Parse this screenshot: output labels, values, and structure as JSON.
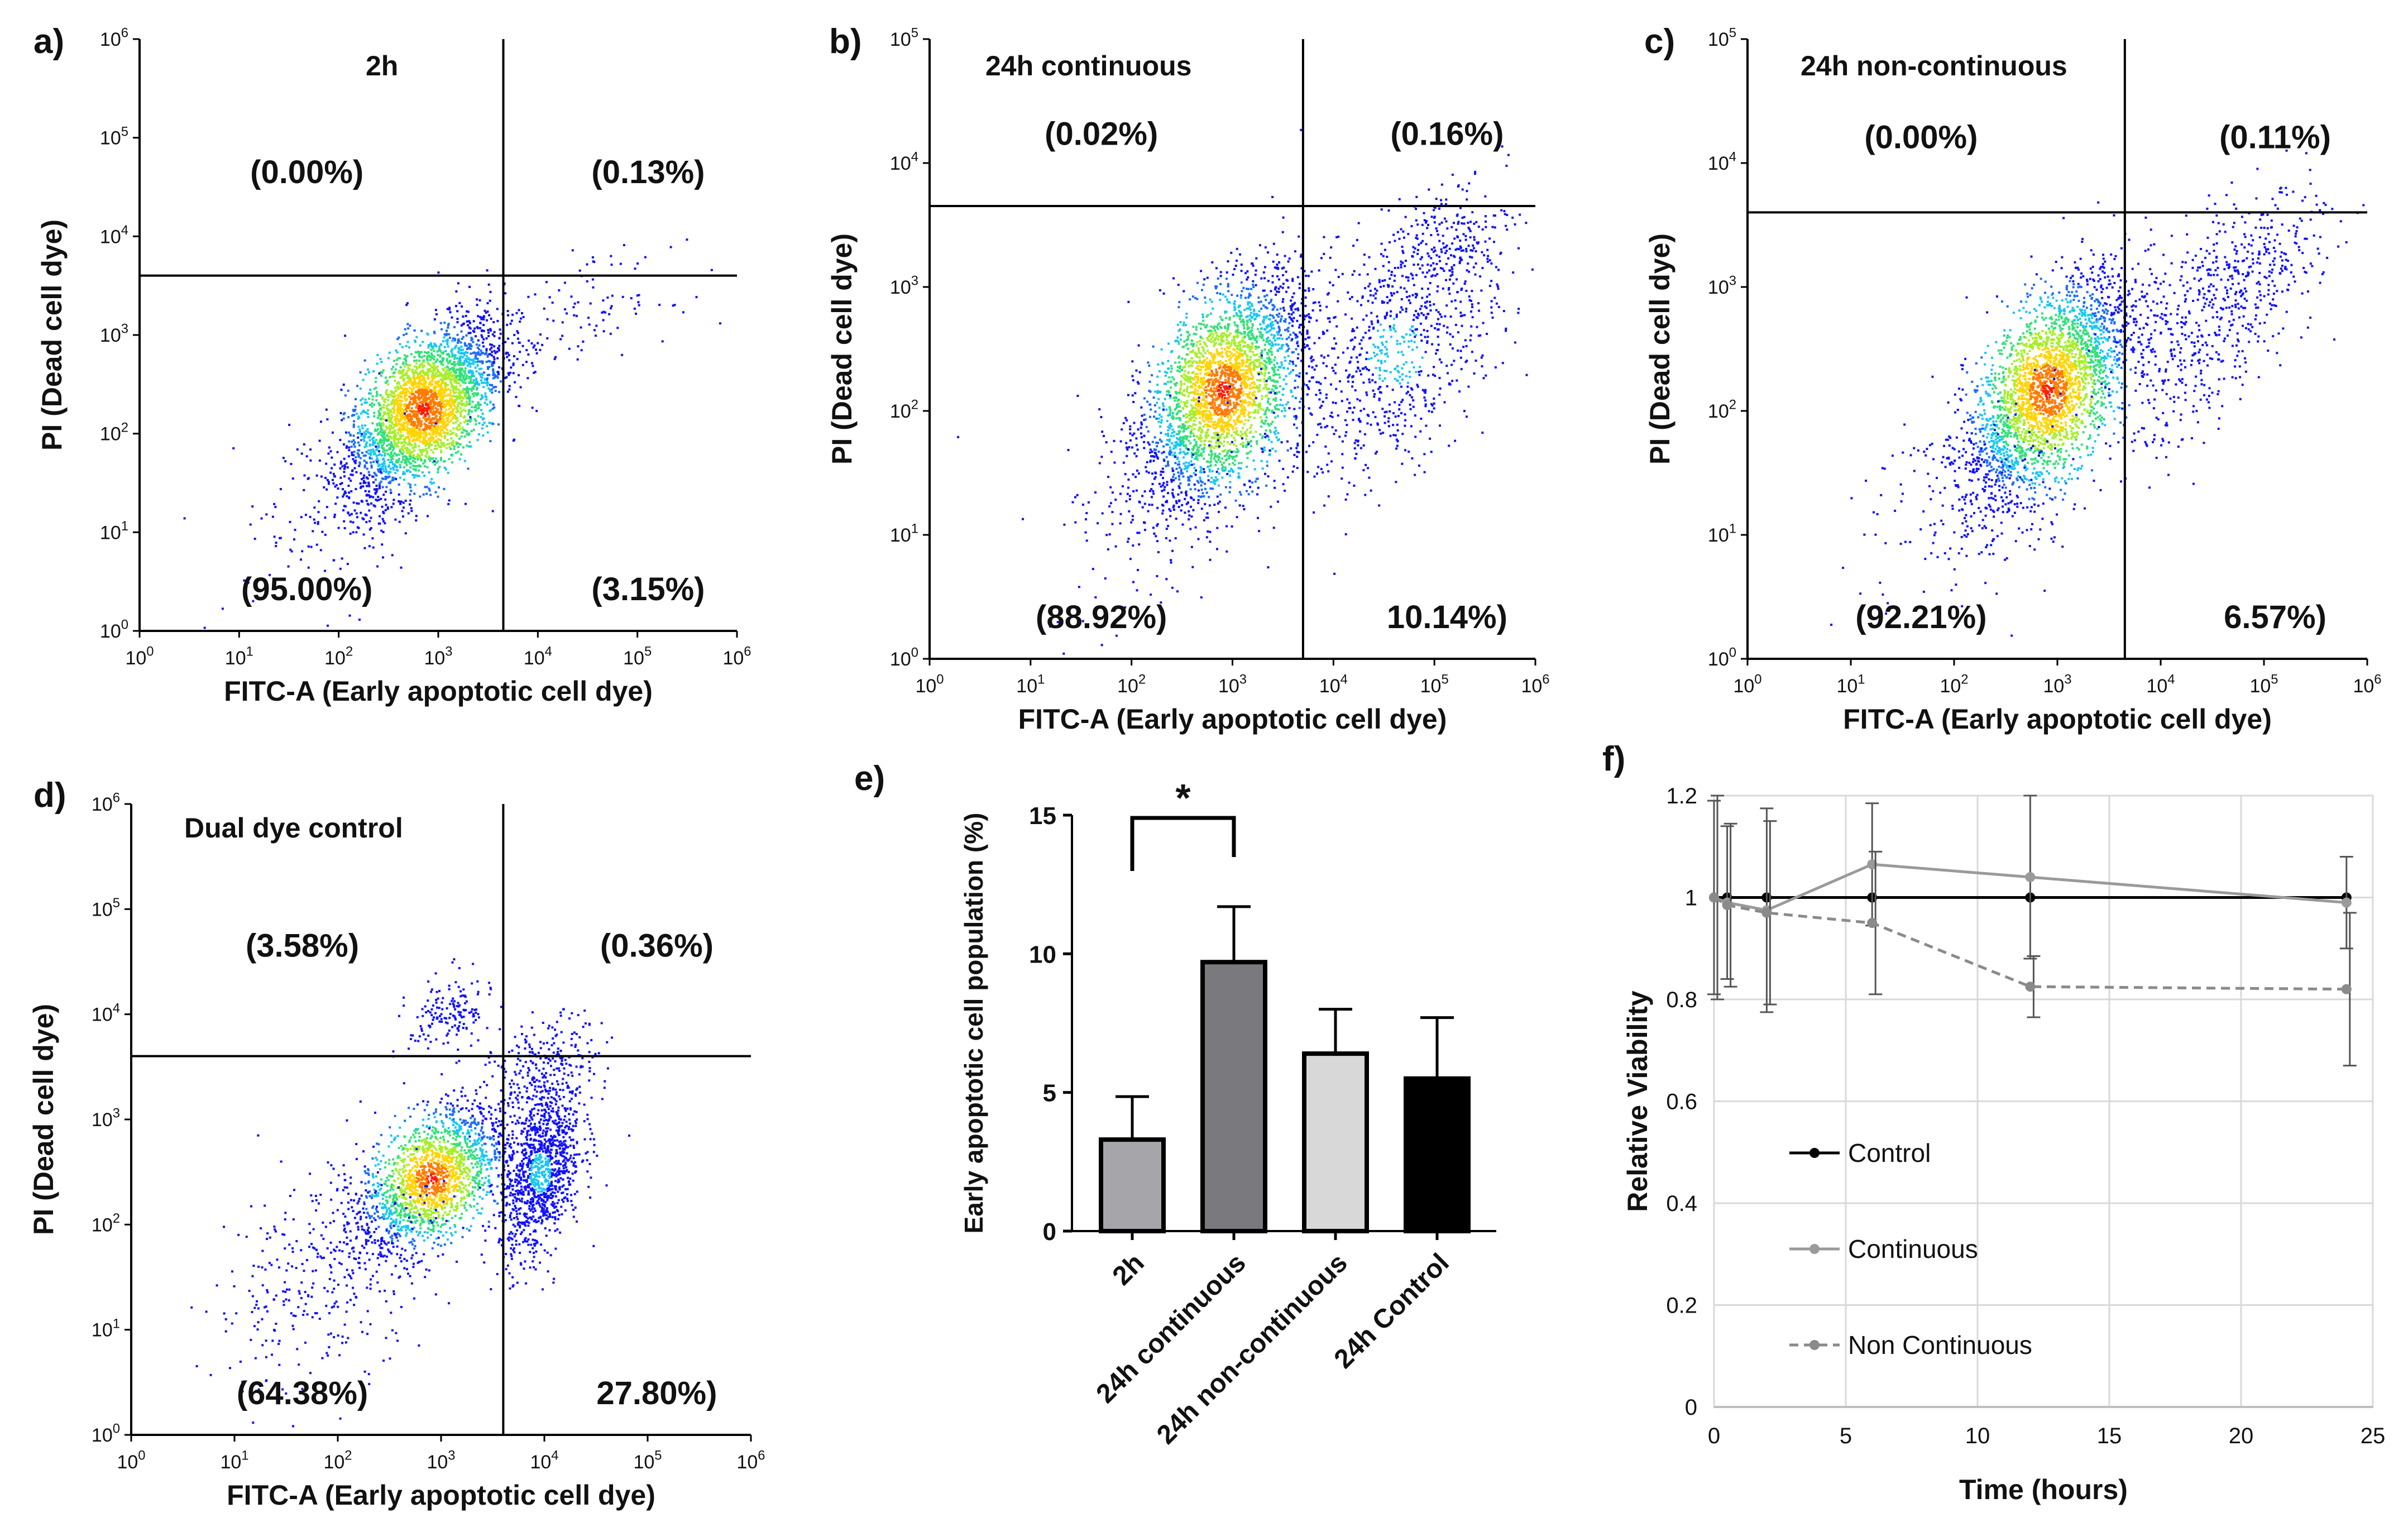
{
  "panel_labels": [
    "a)",
    "b)",
    "c)",
    "d)",
    "e)",
    "f)"
  ],
  "chart_data": [
    {
      "type": "scatter",
      "panel": "a)",
      "title": "2h",
      "xlabel": "FITC-A (Early apoptotic cell dye)",
      "ylabel": "PI (Dead cell dye)",
      "xlim": [
        1,
        1000000
      ],
      "ylim": [
        1,
        1000000
      ],
      "scale": "log",
      "x_ticks": [
        {
          "b": "10",
          "e": "0"
        },
        {
          "b": "10",
          "e": "1"
        },
        {
          "b": "10",
          "e": "2"
        },
        {
          "b": "10",
          "e": "3"
        },
        {
          "b": "10",
          "e": "4"
        },
        {
          "b": "10",
          "e": "5"
        },
        {
          "b": "10",
          "e": "6"
        }
      ],
      "y_ticks": [
        {
          "b": "10",
          "e": "0"
        },
        {
          "b": "10",
          "e": "1"
        },
        {
          "b": "10",
          "e": "2"
        },
        {
          "b": "10",
          "e": "3"
        },
        {
          "b": "10",
          "e": "4"
        },
        {
          "b": "10",
          "e": "5"
        },
        {
          "b": "10",
          "e": "6"
        }
      ],
      "gate": {
        "x": 4500,
        "y": 4000
      },
      "quadrants": {
        "ul": "(0.00%)",
        "ur": "(0.13%)",
        "ll": "(95.00%)",
        "lr": "(3.15%)"
      },
      "clusters": [
        {
          "cx": 700,
          "cy": 180,
          "sx": 0.4,
          "sy": 0.45,
          "rho": 0.6,
          "n": 3000
        },
        {
          "cx": 35000,
          "cy": 2000,
          "sx": 0.4,
          "sy": 0.25,
          "rho": 0.3,
          "n": 90
        },
        {
          "cx": 80,
          "cy": 15,
          "sx": 0.6,
          "sy": 0.5,
          "rho": 0.3,
          "n": 110
        }
      ]
    },
    {
      "type": "scatter",
      "panel": "b)",
      "title": "24h continuous",
      "xlabel": "FITC-A (Early apoptotic cell dye)",
      "ylabel": "PI (Dead cell dye)",
      "xlim": [
        1,
        1000000
      ],
      "ylim": [
        1,
        100000
      ],
      "scale": "log",
      "x_ticks": [
        {
          "b": "10",
          "e": "0"
        },
        {
          "b": "10",
          "e": "1"
        },
        {
          "b": "10",
          "e": "2"
        },
        {
          "b": "10",
          "e": "3"
        },
        {
          "b": "10",
          "e": "4"
        },
        {
          "b": "10",
          "e": "5"
        },
        {
          "b": "10",
          "e": "6"
        }
      ],
      "y_ticks": [
        {
          "b": "10",
          "e": "0"
        },
        {
          "b": "10",
          "e": "1"
        },
        {
          "b": "10",
          "e": "2"
        },
        {
          "b": "10",
          "e": "3"
        },
        {
          "b": "10",
          "e": "4"
        },
        {
          "b": "10",
          "e": "5"
        }
      ],
      "gate": {
        "x": 5000,
        "y": 4500
      },
      "quadrants": {
        "ul": "(0.02%)",
        "ur": "(0.16%)",
        "ll": "(88.92%)",
        "lr": "10.14%)"
      },
      "clusters": [
        {
          "cx": 800,
          "cy": 150,
          "sx": 0.4,
          "sy": 0.45,
          "rho": 0.5,
          "n": 2800
        },
        {
          "cx": 40000,
          "cy": 300,
          "sx": 0.55,
          "sy": 0.55,
          "rho": 0.5,
          "n": 800
        },
        {
          "cx": 100000,
          "cy": 2000,
          "sx": 0.4,
          "sy": 0.3,
          "rho": 0.5,
          "n": 200
        },
        {
          "cx": 200,
          "cy": 20,
          "sx": 0.6,
          "sy": 0.5,
          "rho": 0.3,
          "n": 160
        }
      ]
    },
    {
      "type": "scatter",
      "panel": "c)",
      "title": "24h non-continuous",
      "xlabel": "FITC-A (Early apoptotic cell dye)",
      "ylabel": "PI (Dead cell dye)",
      "xlim": [
        1,
        1000000
      ],
      "ylim": [
        1,
        100000
      ],
      "scale": "log",
      "x_ticks": [
        {
          "b": "10",
          "e": "0"
        },
        {
          "b": "10",
          "e": "1"
        },
        {
          "b": "10",
          "e": "2"
        },
        {
          "b": "10",
          "e": "3"
        },
        {
          "b": "10",
          "e": "4"
        },
        {
          "b": "10",
          "e": "5"
        },
        {
          "b": "10",
          "e": "6"
        }
      ],
      "y_ticks": [
        {
          "b": "10",
          "e": "0"
        },
        {
          "b": "10",
          "e": "1"
        },
        {
          "b": "10",
          "e": "2"
        },
        {
          "b": "10",
          "e": "3"
        },
        {
          "b": "10",
          "e": "4"
        },
        {
          "b": "10",
          "e": "5"
        }
      ],
      "gate": {
        "x": 4500,
        "y": 4000
      },
      "quadrants": {
        "ul": "(0.00%)",
        "ur": "(0.11%)",
        "ll": "(92.21%)",
        "lr": "6.57%)"
      },
      "clusters": [
        {
          "cx": 800,
          "cy": 150,
          "sx": 0.4,
          "sy": 0.45,
          "rho": 0.6,
          "n": 2900
        },
        {
          "cx": 30000,
          "cy": 500,
          "sx": 0.5,
          "sy": 0.5,
          "rho": 0.6,
          "n": 500
        },
        {
          "cx": 80000,
          "cy": 2000,
          "sx": 0.4,
          "sy": 0.3,
          "rho": 0.5,
          "n": 150
        },
        {
          "cx": 150,
          "cy": 20,
          "sx": 0.6,
          "sy": 0.5,
          "rho": 0.3,
          "n": 160
        }
      ]
    },
    {
      "type": "scatter",
      "panel": "d)",
      "title": "Dual dye control",
      "xlabel": "FITC-A (Early apoptotic cell dye)",
      "ylabel": "PI (Dead cell dye)",
      "xlim": [
        1,
        1000000
      ],
      "ylim": [
        1,
        1000000
      ],
      "scale": "log",
      "x_ticks": [
        {
          "b": "10",
          "e": "0"
        },
        {
          "b": "10",
          "e": "1"
        },
        {
          "b": "10",
          "e": "2"
        },
        {
          "b": "10",
          "e": "3"
        },
        {
          "b": "10",
          "e": "4"
        },
        {
          "b": "10",
          "e": "5"
        },
        {
          "b": "10",
          "e": "6"
        }
      ],
      "y_ticks": [
        {
          "b": "10",
          "e": "0"
        },
        {
          "b": "10",
          "e": "1"
        },
        {
          "b": "10",
          "e": "2"
        },
        {
          "b": "10",
          "e": "3"
        },
        {
          "b": "10",
          "e": "4"
        },
        {
          "b": "10",
          "e": "5"
        },
        {
          "b": "10",
          "e": "6"
        }
      ],
      "gate": {
        "x": 4000,
        "y": 4000
      },
      "quadrants": {
        "ul": "(3.58%)",
        "ur": "(0.36%)",
        "ll": "(64.38%)",
        "lr": "27.80%)"
      },
      "clusters": [
        {
          "cx": 800,
          "cy": 280,
          "sx": 0.35,
          "sy": 0.35,
          "rho": 0.5,
          "n": 1800
        },
        {
          "cx": 9000,
          "cy": 320,
          "sx": 0.2,
          "sy": 0.4,
          "rho": 0.4,
          "n": 1100
        },
        {
          "cx": 1200,
          "cy": 10000,
          "sx": 0.2,
          "sy": 0.2,
          "rho": 0.3,
          "n": 160
        },
        {
          "cx": 10000,
          "cy": 3000,
          "sx": 0.25,
          "sy": 0.25,
          "rho": 0.3,
          "n": 250
        },
        {
          "cx": 80,
          "cy": 40,
          "sx": 0.55,
          "sy": 0.55,
          "rho": 0.4,
          "n": 350
        }
      ]
    },
    {
      "type": "bar",
      "panel": "e)",
      "categories": [
        "2h",
        "24h continuous",
        "24h non-continuous",
        "24h Control"
      ],
      "values": [
        3.3,
        9.7,
        6.4,
        5.5
      ],
      "errors": [
        1.55,
        2.0,
        1.6,
        2.2
      ],
      "colors": [
        "#a6a6aa",
        "#7a7a7e",
        "#d8d8d8",
        "#000000"
      ],
      "ylabel": "Early apoptotic cell population (%)",
      "ylim": [
        0,
        15
      ],
      "y_ticks": [
        "0",
        "5",
        "10",
        "15"
      ],
      "significance": {
        "from": 0,
        "to": 1,
        "label": "*"
      }
    },
    {
      "type": "line",
      "panel": "f)",
      "xlabel": "Time (hours)",
      "ylabel": "Relative Viability",
      "xlim": [
        0,
        25
      ],
      "ylim": [
        0,
        1.2
      ],
      "x_ticks": [
        "0",
        "5",
        "10",
        "15",
        "20",
        "25"
      ],
      "y_ticks": [
        "0",
        "0.2",
        "0.4",
        "0.6",
        "0.8",
        "1",
        "1.2"
      ],
      "grid": true,
      "series": [
        {
          "name": "Control",
          "color": "#000000",
          "dash": false,
          "x": [
            0,
            0.5,
            2,
            6,
            12,
            24
          ],
          "y": [
            1.0,
            1.0,
            1.0,
            1.0,
            1.0,
            1.0
          ],
          "err": [
            0,
            0,
            0,
            0,
            0,
            0
          ]
        },
        {
          "name": "Continuous",
          "color": "#9a9a9a",
          "dash": false,
          "x": [
            0,
            0.5,
            2,
            6,
            12,
            24
          ],
          "y": [
            1.0,
            0.99,
            0.975,
            1.065,
            1.04,
            0.99
          ],
          "err": [
            0.19,
            0.15,
            0.2,
            0.12,
            0.16,
            0.09
          ]
        },
        {
          "name": "Non Continuous",
          "color": "#8a8a8a",
          "dash": true,
          "x": [
            0,
            0.5,
            2,
            6,
            12,
            24
          ],
          "y": [
            1.0,
            0.985,
            0.97,
            0.95,
            0.825,
            0.82
          ],
          "err": [
            0.2,
            0.16,
            0.18,
            0.14,
            0.06,
            0.15
          ]
        }
      ]
    }
  ]
}
